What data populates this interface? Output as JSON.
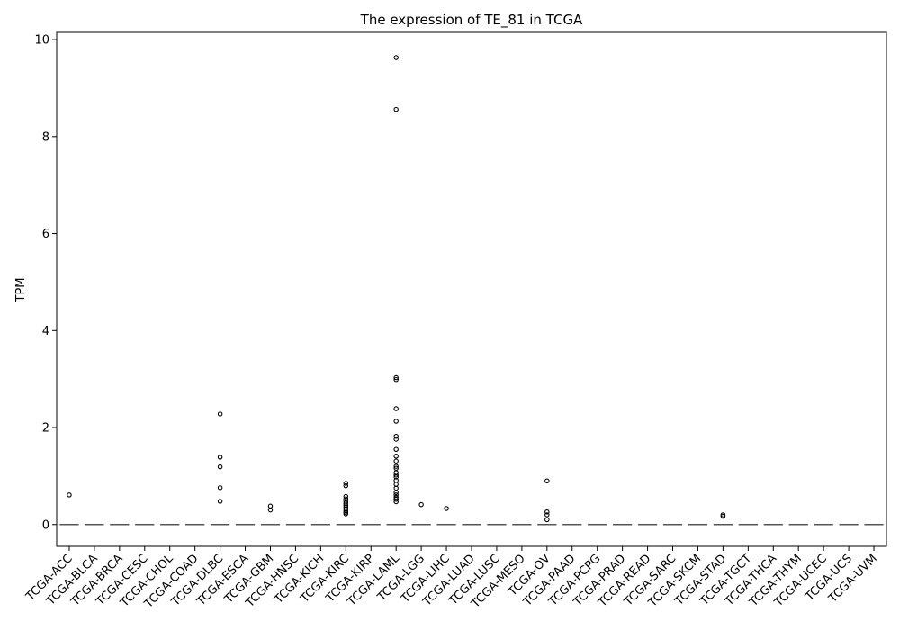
{
  "chart_data": {
    "type": "box",
    "title": "The expression of TE_81 in TCGA",
    "xlabel": "",
    "ylabel": "TPM",
    "ylim": [
      -0.45,
      10.15
    ],
    "yticks": [
      0,
      2,
      4,
      6,
      8,
      10
    ],
    "ytick_labels": [
      "0",
      "2",
      "4",
      "6",
      "8",
      "10"
    ],
    "grid": false,
    "categories": [
      "TCGA-ACC",
      "TCGA-BLCA",
      "TCGA-BRCA",
      "TCGA-CESC",
      "TCGA-CHOL",
      "TCGA-COAD",
      "TCGA-DLBC",
      "TCGA-ESCA",
      "TCGA-GBM",
      "TCGA-HNSC",
      "TCGA-KICH",
      "TCGA-KIRC",
      "TCGA-KIRP",
      "TCGA-LAML",
      "TCGA-LGG",
      "TCGA-LIHC",
      "TCGA-LUAD",
      "TCGA-LUSC",
      "TCGA-MESO",
      "TCGA-OV",
      "TCGA-PAAD",
      "TCGA-PCPG",
      "TCGA-PRAD",
      "TCGA-READ",
      "TCGA-SARC",
      "TCGA-SKCM",
      "TCGA-STAD",
      "TCGA-TGCT",
      "TCGA-THCA",
      "TCGA-THYM",
      "TCGA-UCEC",
      "TCGA-UCS",
      "TCGA-UVM"
    ],
    "medians": [
      0,
      0,
      0,
      0,
      0,
      0,
      0,
      0,
      0,
      0,
      0,
      0,
      0,
      0,
      0,
      0,
      0,
      0,
      0,
      0,
      0,
      0,
      0,
      0,
      0,
      0,
      0,
      0,
      0,
      0,
      0,
      0,
      0
    ],
    "outliers": [
      [
        0.61
      ],
      [],
      [],
      [],
      [],
      [],
      [
        2.28,
        1.39,
        1.19,
        0.76,
        0.48
      ],
      [],
      [
        0.38,
        0.3
      ],
      [],
      [],
      [
        0.85,
        0.8,
        0.58,
        0.53,
        0.48,
        0.44,
        0.4,
        0.36,
        0.32,
        0.28,
        0.25,
        0.22
      ],
      [],
      [
        9.63,
        8.56,
        3.03,
        2.99,
        2.39,
        2.13,
        1.82,
        1.76,
        1.55,
        1.41,
        1.31,
        1.2,
        1.16,
        1.07,
        1.02,
        0.98,
        0.91,
        0.83,
        0.75,
        0.66,
        0.61,
        0.56,
        0.52,
        0.47
      ],
      [
        0.41
      ],
      [
        0.33
      ],
      [],
      [],
      [],
      [
        0.9,
        0.26,
        0.2,
        0.1
      ],
      [],
      [],
      [],
      [],
      [],
      [],
      [
        0.2,
        0.17
      ],
      [],
      [],
      [],
      [],
      [],
      []
    ],
    "colors": {
      "axis": "#000000",
      "median": "#555555",
      "outlier_edge": "#000000"
    }
  }
}
